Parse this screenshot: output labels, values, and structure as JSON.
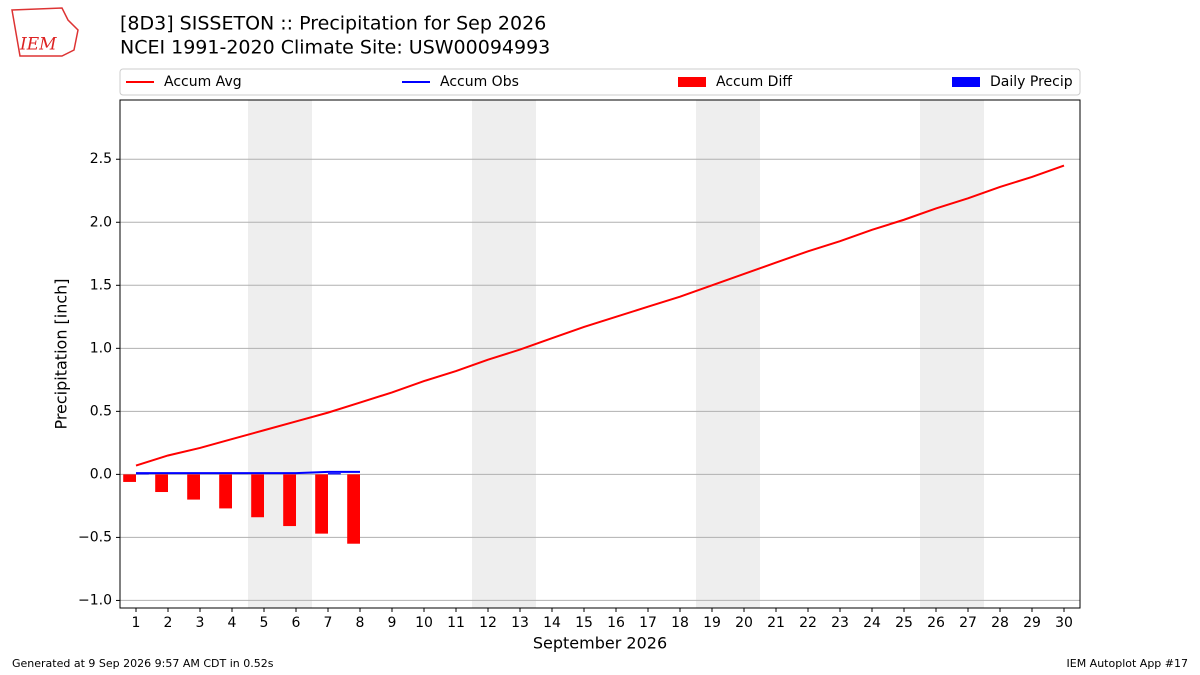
{
  "chart_data": {
    "type": "bar-line",
    "title": "[8D3] SISSETON :: Precipitation for Sep 2026",
    "subtitle": "NCEI 1991-2020 Climate Site: USW00094993",
    "logo": "IEM",
    "x_label": "September 2026",
    "y_label": "Precipitation [inch]",
    "footer_left": "Generated at 9 Sep 2026 9:57 AM CDT in 0.52s",
    "footer_right": "IEM Autoplot App #17",
    "x": [
      1,
      2,
      3,
      4,
      5,
      6,
      7,
      8,
      9,
      10,
      11,
      12,
      13,
      14,
      15,
      16,
      17,
      18,
      19,
      20,
      21,
      22,
      23,
      24,
      25,
      26,
      27,
      28,
      29,
      30
    ],
    "weekends": [
      5,
      6,
      12,
      13,
      19,
      20,
      26,
      27
    ],
    "series": [
      {
        "name": "Accum Avg",
        "kind": "line",
        "color": "#ff0000",
        "values": [
          0.07,
          0.15,
          0.21,
          0.28,
          0.35,
          0.42,
          0.49,
          0.57,
          0.65,
          0.74,
          0.82,
          0.91,
          0.99,
          1.08,
          1.17,
          1.25,
          1.33,
          1.41,
          1.5,
          1.59,
          1.68,
          1.77,
          1.85,
          1.94,
          2.02,
          2.11,
          2.19,
          2.28,
          2.36,
          2.45
        ]
      },
      {
        "name": "Accum Obs",
        "kind": "line",
        "color": "#0000ff",
        "values": [
          0.01,
          0.01,
          0.01,
          0.01,
          0.01,
          0.01,
          0.02,
          0.02,
          null,
          null,
          null,
          null,
          null,
          null,
          null,
          null,
          null,
          null,
          null,
          null,
          null,
          null,
          null,
          null,
          null,
          null,
          null,
          null,
          null,
          null
        ]
      },
      {
        "name": "Accum Diff",
        "kind": "bar",
        "offset": -1,
        "color": "#ff0000",
        "values": [
          -0.06,
          -0.14,
          -0.2,
          -0.27,
          -0.34,
          -0.41,
          -0.47,
          -0.55,
          null,
          null,
          null,
          null,
          null,
          null,
          null,
          null,
          null,
          null,
          null,
          null,
          null,
          null,
          null,
          null,
          null,
          null,
          null,
          null,
          null,
          null
        ]
      },
      {
        "name": "Daily Precip",
        "kind": "bar",
        "offset": 0,
        "color": "#0000ff",
        "values": [
          0.01,
          0,
          0,
          0,
          0,
          0,
          0.01,
          0,
          null,
          null,
          null,
          null,
          null,
          null,
          null,
          null,
          null,
          null,
          null,
          null,
          null,
          null,
          null,
          null,
          null,
          null,
          null,
          null,
          null,
          null
        ]
      }
    ],
    "xlim": [
      0.5,
      30.5
    ],
    "xticks": [
      1,
      2,
      3,
      4,
      5,
      6,
      7,
      8,
      9,
      10,
      11,
      12,
      13,
      14,
      15,
      16,
      17,
      18,
      19,
      20,
      21,
      22,
      23,
      24,
      25,
      26,
      27,
      28,
      29,
      30
    ],
    "ylim": [
      -1.06,
      2.97
    ],
    "yticks": [
      {
        "value": -1.0,
        "label": "−1.0"
      },
      {
        "value": -0.5,
        "label": "−0.5"
      },
      {
        "value": 0.0,
        "label": "0.0"
      },
      0.5,
      {
        "value": 1.0,
        "label": "1.0"
      },
      1.5,
      {
        "value": 2.0,
        "label": "2.0"
      },
      2.5
    ],
    "grid": true
  }
}
